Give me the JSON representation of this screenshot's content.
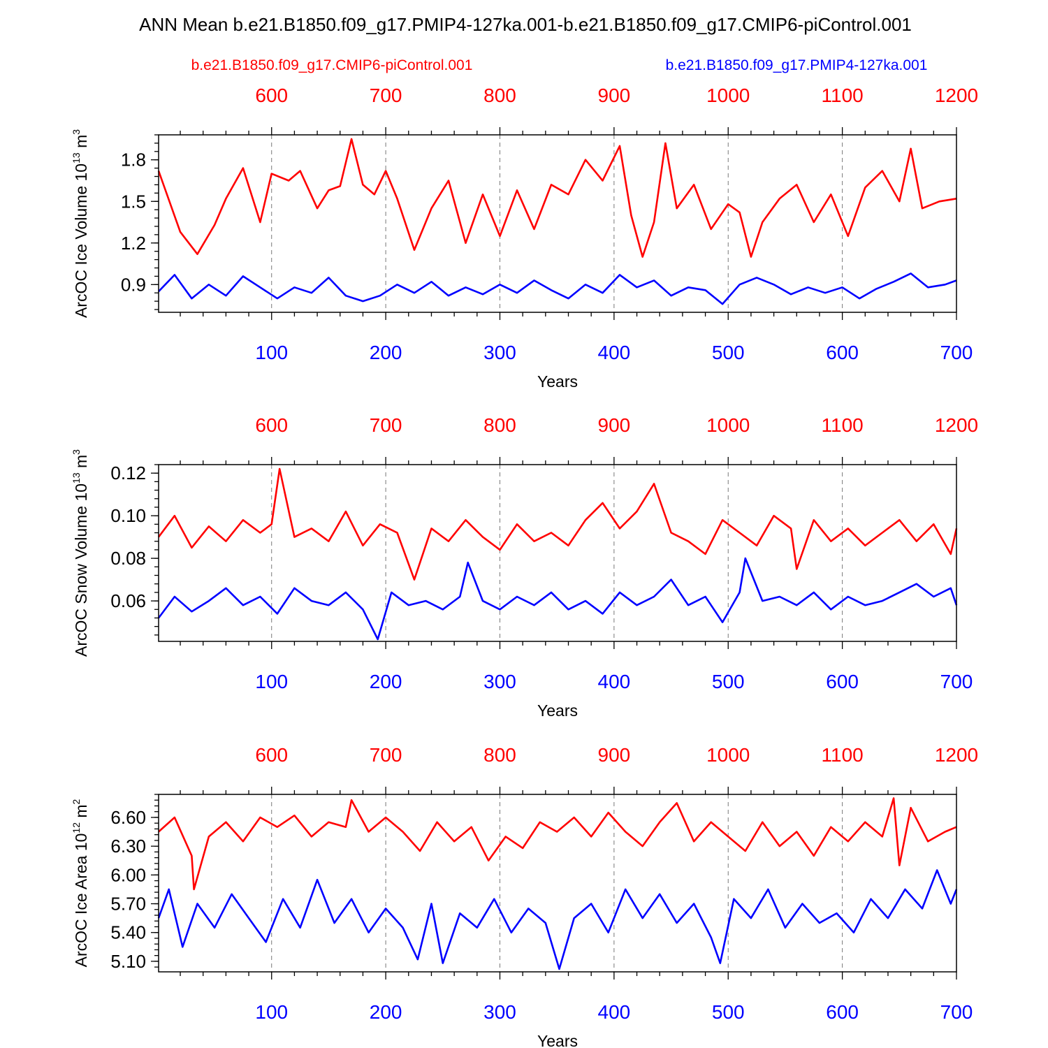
{
  "title": "ANN Mean b.e21.B1850.f09_g17.PMIP4-127ka.001-b.e21.B1850.f09_g17.CMIP6-piControl.001",
  "legend": {
    "red": "b.e21.B1850.f09_g17.CMIP6-piControl.001",
    "blue": "b.e21.B1850.f09_g17.PMIP4-127ka.001"
  },
  "colors": {
    "control": "#ff0000",
    "pmip": "#0000ff"
  },
  "chart_data": [
    {
      "type": "line",
      "ylabel": "ArcOC Ice Volume 10",
      "ylabel_exp": "13",
      "ylabel_unit": " m",
      "ylabel_unit_exp": "3",
      "xlabel": "Years",
      "ylim": [
        0.7,
        1.98
      ],
      "yticks": [
        "0.9",
        "1.2",
        "1.5",
        "1.8"
      ],
      "ytick_values": [
        0.9,
        1.2,
        1.5,
        1.8
      ],
      "xlim_bottom": [
        1,
        700
      ],
      "xlim_top": [
        501,
        1200
      ],
      "xticks_bottom": [
        "100",
        "200",
        "300",
        "400",
        "500",
        "600",
        "700"
      ],
      "xticks_top": [
        "600",
        "700",
        "800",
        "900",
        "1000",
        "1100",
        "1200"
      ],
      "series": [
        {
          "name": "b.e21.B1850.f09_g17.CMIP6-piControl.001",
          "color": "#ff0000",
          "axis": "top",
          "x": [
            501,
            520,
            535,
            550,
            560,
            575,
            590,
            600,
            615,
            625,
            640,
            650,
            660,
            670,
            680,
            690,
            700,
            710,
            725,
            740,
            755,
            770,
            785,
            800,
            815,
            830,
            845,
            860,
            875,
            890,
            905,
            915,
            925,
            935,
            945,
            955,
            970,
            985,
            1000,
            1010,
            1020,
            1030,
            1045,
            1060,
            1075,
            1090,
            1105,
            1120,
            1135,
            1150,
            1160,
            1170,
            1185,
            1200
          ],
          "y": [
            1.72,
            1.28,
            1.12,
            1.33,
            1.52,
            1.74,
            1.35,
            1.7,
            1.65,
            1.72,
            1.45,
            1.58,
            1.61,
            1.95,
            1.62,
            1.55,
            1.72,
            1.52,
            1.15,
            1.45,
            1.65,
            1.2,
            1.55,
            1.25,
            1.58,
            1.3,
            1.62,
            1.55,
            1.8,
            1.65,
            1.9,
            1.4,
            1.1,
            1.35,
            1.92,
            1.45,
            1.62,
            1.3,
            1.48,
            1.42,
            1.1,
            1.35,
            1.52,
            1.62,
            1.35,
            1.55,
            1.25,
            1.6,
            1.72,
            1.5,
            1.88,
            1.45,
            1.5,
            1.52
          ]
        },
        {
          "name": "b.e21.B1850.f09_g17.PMIP4-127ka.001",
          "color": "#0000ff",
          "axis": "bottom",
          "x": [
            1,
            15,
            30,
            45,
            60,
            75,
            90,
            105,
            120,
            135,
            150,
            165,
            180,
            195,
            210,
            225,
            240,
            255,
            270,
            285,
            300,
            315,
            330,
            345,
            360,
            375,
            390,
            405,
            420,
            435,
            450,
            465,
            480,
            495,
            510,
            525,
            540,
            555,
            570,
            585,
            600,
            615,
            630,
            645,
            660,
            675,
            690,
            700
          ],
          "y": [
            0.85,
            0.97,
            0.8,
            0.9,
            0.82,
            0.96,
            0.88,
            0.8,
            0.88,
            0.84,
            0.95,
            0.82,
            0.78,
            0.82,
            0.9,
            0.84,
            0.92,
            0.82,
            0.88,
            0.83,
            0.9,
            0.84,
            0.93,
            0.86,
            0.8,
            0.9,
            0.84,
            0.97,
            0.88,
            0.93,
            0.82,
            0.88,
            0.86,
            0.76,
            0.9,
            0.95,
            0.9,
            0.83,
            0.88,
            0.84,
            0.88,
            0.8,
            0.87,
            0.92,
            0.98,
            0.88,
            0.9,
            0.93
          ]
        }
      ]
    },
    {
      "type": "line",
      "ylabel": "ArcOC Snow Volume 10",
      "ylabel_exp": "13",
      "ylabel_unit": " m",
      "ylabel_unit_exp": "3",
      "xlabel": "Years",
      "ylim": [
        0.041,
        0.124
      ],
      "yticks": [
        "0.06",
        "0.08",
        "0.10",
        "0.12"
      ],
      "ytick_values": [
        0.06,
        0.08,
        0.1,
        0.12
      ],
      "xlim_bottom": [
        1,
        700
      ],
      "xlim_top": [
        501,
        1200
      ],
      "xticks_bottom": [
        "100",
        "200",
        "300",
        "400",
        "500",
        "600",
        "700"
      ],
      "xticks_top": [
        "600",
        "700",
        "800",
        "900",
        "1000",
        "1100",
        "1200"
      ],
      "series": [
        {
          "name": "b.e21.B1850.f09_g17.CMIP6-piControl.001",
          "color": "#ff0000",
          "axis": "top",
          "x": [
            501,
            515,
            530,
            545,
            560,
            575,
            590,
            600,
            607,
            620,
            635,
            650,
            665,
            680,
            695,
            710,
            725,
            740,
            755,
            770,
            785,
            800,
            815,
            830,
            845,
            860,
            875,
            890,
            905,
            920,
            935,
            950,
            965,
            980,
            995,
            1010,
            1025,
            1040,
            1055,
            1060,
            1075,
            1090,
            1105,
            1120,
            1135,
            1150,
            1165,
            1180,
            1195,
            1200
          ],
          "y": [
            0.09,
            0.1,
            0.085,
            0.095,
            0.088,
            0.098,
            0.092,
            0.096,
            0.122,
            0.09,
            0.094,
            0.088,
            0.102,
            0.086,
            0.096,
            0.092,
            0.07,
            0.094,
            0.088,
            0.098,
            0.09,
            0.084,
            0.096,
            0.088,
            0.092,
            0.086,
            0.098,
            0.106,
            0.094,
            0.102,
            0.115,
            0.092,
            0.088,
            0.082,
            0.098,
            0.092,
            0.086,
            0.1,
            0.094,
            0.075,
            0.098,
            0.088,
            0.094,
            0.086,
            0.092,
            0.098,
            0.088,
            0.096,
            0.082,
            0.094
          ]
        },
        {
          "name": "b.e21.B1850.f09_g17.PMIP4-127ka.001",
          "color": "#0000ff",
          "axis": "bottom",
          "x": [
            1,
            15,
            30,
            45,
            60,
            75,
            90,
            105,
            120,
            135,
            150,
            165,
            180,
            193,
            205,
            220,
            235,
            250,
            265,
            272,
            285,
            300,
            315,
            330,
            345,
            360,
            375,
            390,
            405,
            420,
            435,
            450,
            465,
            480,
            495,
            510,
            515,
            530,
            545,
            560,
            575,
            590,
            605,
            620,
            635,
            650,
            665,
            680,
            695,
            700
          ],
          "y": [
            0.052,
            0.062,
            0.055,
            0.06,
            0.066,
            0.058,
            0.062,
            0.054,
            0.066,
            0.06,
            0.058,
            0.064,
            0.056,
            0.042,
            0.064,
            0.058,
            0.06,
            0.056,
            0.062,
            0.078,
            0.06,
            0.056,
            0.062,
            0.058,
            0.064,
            0.056,
            0.06,
            0.054,
            0.064,
            0.058,
            0.062,
            0.07,
            0.058,
            0.062,
            0.05,
            0.064,
            0.08,
            0.06,
            0.062,
            0.058,
            0.064,
            0.056,
            0.062,
            0.058,
            0.06,
            0.064,
            0.068,
            0.062,
            0.066,
            0.058
          ]
        }
      ]
    },
    {
      "type": "line",
      "ylabel": "ArcOC Ice Area 10",
      "ylabel_exp": "12",
      "ylabel_unit": " m",
      "ylabel_unit_exp": "2",
      "xlabel": "Years",
      "ylim": [
        4.99,
        6.84
      ],
      "yticks": [
        "5.10",
        "5.40",
        "5.70",
        "6.00",
        "6.30",
        "6.60"
      ],
      "ytick_values": [
        5.1,
        5.4,
        5.7,
        6.0,
        6.3,
        6.6
      ],
      "xlim_bottom": [
        1,
        700
      ],
      "xlim_top": [
        501,
        1200
      ],
      "xticks_bottom": [
        "100",
        "200",
        "300",
        "400",
        "500",
        "600",
        "700"
      ],
      "xticks_top": [
        "600",
        "700",
        "800",
        "900",
        "1000",
        "1100",
        "1200"
      ],
      "series": [
        {
          "name": "b.e21.B1850.f09_g17.CMIP6-piControl.001",
          "color": "#ff0000",
          "axis": "top",
          "x": [
            501,
            515,
            530,
            532,
            545,
            560,
            575,
            590,
            605,
            620,
            635,
            650,
            665,
            670,
            685,
            700,
            715,
            730,
            745,
            760,
            775,
            790,
            805,
            820,
            835,
            850,
            865,
            880,
            895,
            910,
            925,
            940,
            955,
            970,
            985,
            1000,
            1015,
            1030,
            1045,
            1060,
            1075,
            1090,
            1105,
            1120,
            1135,
            1145,
            1150,
            1160,
            1175,
            1190,
            1200
          ],
          "y": [
            6.45,
            6.6,
            6.2,
            5.85,
            6.4,
            6.55,
            6.35,
            6.6,
            6.5,
            6.62,
            6.4,
            6.55,
            6.5,
            6.78,
            6.45,
            6.6,
            6.45,
            6.25,
            6.55,
            6.35,
            6.5,
            6.15,
            6.4,
            6.28,
            6.55,
            6.45,
            6.6,
            6.4,
            6.65,
            6.45,
            6.3,
            6.55,
            6.75,
            6.35,
            6.55,
            6.4,
            6.25,
            6.55,
            6.3,
            6.45,
            6.2,
            6.5,
            6.35,
            6.55,
            6.4,
            6.8,
            6.1,
            6.7,
            6.35,
            6.45,
            6.5
          ]
        },
        {
          "name": "b.e21.B1850.f09_g17.PMIP4-127ka.001",
          "color": "#0000ff",
          "axis": "bottom",
          "x": [
            1,
            10,
            22,
            35,
            50,
            65,
            80,
            95,
            110,
            125,
            140,
            155,
            170,
            185,
            200,
            215,
            228,
            240,
            250,
            265,
            280,
            295,
            310,
            325,
            340,
            352,
            365,
            380,
            395,
            410,
            425,
            440,
            455,
            470,
            485,
            493,
            505,
            520,
            535,
            550,
            565,
            580,
            595,
            610,
            625,
            640,
            655,
            670,
            683,
            695,
            700
          ],
          "y": [
            5.55,
            5.85,
            5.25,
            5.7,
            5.45,
            5.8,
            5.55,
            5.3,
            5.75,
            5.45,
            5.95,
            5.5,
            5.75,
            5.4,
            5.65,
            5.45,
            5.12,
            5.7,
            5.08,
            5.6,
            5.45,
            5.75,
            5.4,
            5.65,
            5.5,
            5.02,
            5.55,
            5.7,
            5.4,
            5.85,
            5.55,
            5.8,
            5.5,
            5.7,
            5.35,
            5.08,
            5.75,
            5.55,
            5.85,
            5.45,
            5.7,
            5.5,
            5.6,
            5.4,
            5.75,
            5.55,
            5.85,
            5.65,
            6.05,
            5.7,
            5.85
          ]
        }
      ]
    }
  ]
}
